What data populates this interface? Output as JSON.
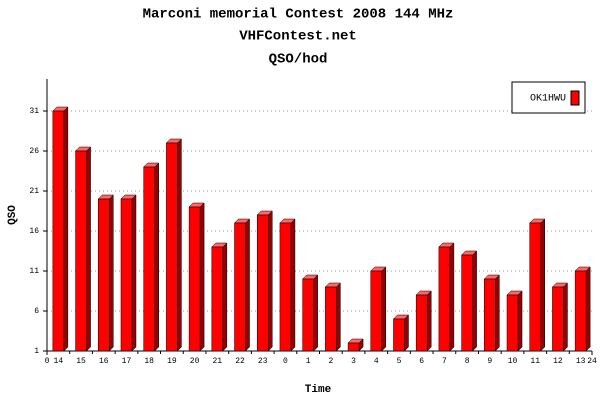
{
  "chart_data": {
    "type": "bar",
    "title": "Marconi memorial Contest 2008 144 MHz",
    "subtitle": "VHFContest.net",
    "subtitle2": "QSO/hod",
    "x_label": "Time",
    "y_label": "QSO",
    "categories": [
      "14",
      "15",
      "16",
      "17",
      "18",
      "19",
      "20",
      "21",
      "22",
      "23",
      "0",
      "1",
      "2",
      "3",
      "4",
      "5",
      "6",
      "7",
      "8",
      "9",
      "10",
      "11",
      "12",
      "13"
    ],
    "series": [
      {
        "name": "OK1HWU",
        "color": "#ff0000",
        "values": [
          31,
          26,
          20,
          20,
          24,
          27,
          19,
          14,
          17,
          18,
          17,
          10,
          9,
          2,
          11,
          5,
          8,
          14,
          13,
          10,
          8,
          17,
          9,
          11
        ]
      }
    ],
    "xlim": [
      0,
      24
    ],
    "xticks": [
      0,
      24
    ],
    "ylim": [
      1,
      35
    ],
    "yticks": [
      1,
      6,
      11,
      16,
      21,
      26,
      31
    ],
    "grid": true,
    "legend": "top-right"
  }
}
